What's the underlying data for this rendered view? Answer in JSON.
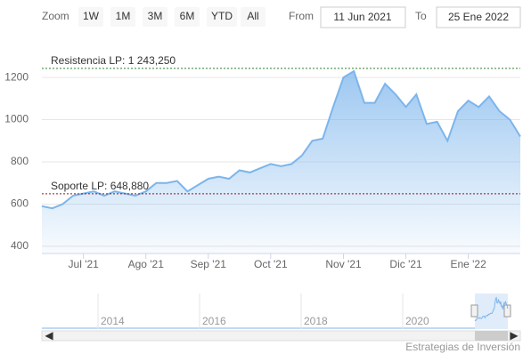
{
  "range_selector": {
    "zoom_label": "Zoom",
    "buttons": [
      "1W",
      "1M",
      "3M",
      "6M",
      "YTD",
      "All"
    ],
    "from_label": "From",
    "from": "11 Jun 2021",
    "to_label": "To",
    "to": "25 Ene 2022"
  },
  "chart_data": {
    "type": "area",
    "categories": [
      "",
      null,
      null,
      null,
      "Jul '21",
      null,
      null,
      null,
      null,
      null,
      "Ago '21",
      null,
      null,
      null,
      null,
      null,
      "Sep '21",
      null,
      null,
      null,
      null,
      null,
      "Oct '21",
      null,
      null,
      null,
      null,
      null,
      null,
      "Nov '21",
      null,
      null,
      null,
      null,
      null,
      "Dic '21",
      null,
      null,
      null,
      null,
      null,
      "Ene '22",
      null,
      null,
      null,
      null,
      null
    ],
    "values": [
      590,
      580,
      600,
      640,
      650,
      660,
      640,
      660,
      650,
      640,
      660,
      700,
      700,
      710,
      660,
      690,
      720,
      730,
      720,
      760,
      750,
      770,
      790,
      780,
      790,
      830,
      900,
      910,
      1060,
      1200,
      1230,
      1080,
      1080,
      1170,
      1120,
      1060,
      1120,
      980,
      990,
      900,
      1040,
      1090,
      1060,
      1110,
      1040,
      1000,
      920
    ],
    "color": "#7cb5ec",
    "ylim": [
      366,
      1272
    ],
    "yticks": [
      400,
      600,
      800,
      1000,
      1200
    ],
    "grid": true,
    "plot_lines": [
      {
        "value": 1243.25,
        "label": "Resistencia LP: 1 243,250",
        "color": "#2e7d32"
      },
      {
        "value": 648.88,
        "label": "Soporte LP: 648,880",
        "color": "#8b1a1a"
      }
    ]
  },
  "navigator": {
    "labels": [
      "2014",
      "2016",
      "2018",
      "2020"
    ]
  },
  "credits": "Estrategias de Inversión"
}
